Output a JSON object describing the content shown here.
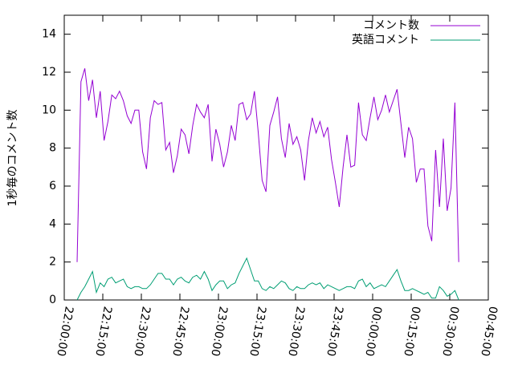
{
  "chart_data": {
    "type": "line",
    "y_label": "1秒毎のコメント数",
    "x": [
      "22:05:00",
      "22:06:30",
      "22:08:00",
      "22:09:30",
      "22:11:00",
      "22:12:30",
      "22:14:00",
      "22:15:30",
      "22:17:00",
      "22:18:30",
      "22:20:00",
      "22:21:30",
      "22:23:00",
      "22:24:30",
      "22:26:00",
      "22:27:30",
      "22:29:00",
      "22:30:30",
      "22:32:00",
      "22:33:30",
      "22:35:00",
      "22:36:30",
      "22:38:00",
      "22:39:30",
      "22:41:00",
      "22:42:30",
      "22:44:00",
      "22:45:30",
      "22:47:00",
      "22:48:30",
      "22:50:00",
      "22:51:30",
      "22:53:00",
      "22:54:30",
      "22:56:00",
      "22:57:30",
      "22:59:00",
      "23:00:30",
      "23:02:00",
      "23:03:30",
      "23:05:00",
      "23:06:30",
      "23:08:00",
      "23:09:30",
      "23:11:00",
      "23:12:30",
      "23:14:00",
      "23:15:30",
      "23:17:00",
      "23:18:30",
      "23:20:00",
      "23:21:30",
      "23:23:00",
      "23:24:30",
      "23:26:00",
      "23:27:30",
      "23:29:00",
      "23:30:30",
      "23:32:00",
      "23:33:30",
      "23:35:00",
      "23:36:30",
      "23:38:00",
      "23:39:30",
      "23:41:00",
      "23:42:30",
      "23:44:00",
      "23:45:30",
      "23:47:00",
      "23:48:30",
      "23:50:00",
      "23:51:30",
      "23:53:00",
      "23:54:30",
      "23:56:00",
      "23:57:30",
      "23:59:00",
      "00:00:30",
      "00:02:00",
      "00:03:30",
      "00:05:00",
      "00:06:30",
      "00:08:00",
      "00:09:30",
      "00:11:00",
      "00:12:30",
      "00:14:00",
      "00:15:30",
      "00:17:00",
      "00:18:30",
      "00:20:00",
      "00:21:30",
      "00:23:00",
      "00:24:30",
      "00:26:00",
      "00:27:30",
      "00:29:00",
      "00:30:30",
      "00:32:00",
      "00:33:30"
    ],
    "series": [
      {
        "name": "コメント数",
        "color": "#9400d3",
        "values": [
          2.0,
          11.5,
          12.2,
          10.5,
          11.6,
          9.6,
          11.0,
          8.4,
          9.4,
          10.8,
          10.6,
          11.0,
          10.5,
          9.7,
          9.3,
          10.0,
          10.0,
          7.8,
          6.9,
          9.6,
          10.5,
          10.3,
          10.4,
          7.9,
          8.3,
          6.7,
          7.6,
          9.0,
          8.7,
          7.7,
          9.2,
          10.3,
          9.9,
          9.6,
          10.3,
          7.3,
          9.0,
          8.2,
          7.0,
          7.8,
          9.2,
          8.4,
          10.3,
          10.4,
          9.5,
          9.8,
          11.0,
          8.8,
          6.3,
          5.7,
          9.2,
          9.9,
          10.7,
          8.5,
          7.5,
          9.3,
          8.2,
          8.6,
          7.9,
          6.3,
          8.4,
          9.6,
          8.8,
          9.4,
          8.6,
          9.1,
          7.4,
          6.2,
          4.9,
          7.0,
          8.7,
          7.0,
          7.1,
          10.4,
          8.7,
          8.4,
          9.6,
          10.7,
          9.5,
          10.0,
          10.8,
          9.9,
          10.5,
          11.1,
          9.3,
          7.5,
          9.1,
          8.5,
          6.2,
          6.9,
          6.9,
          3.9,
          3.1,
          7.9,
          4.9,
          8.5,
          4.7,
          5.9,
          10.4,
          2.0
        ]
      },
      {
        "name": "英語コメント",
        "color": "#009e73",
        "values": [
          0.0,
          0.4,
          0.7,
          1.1,
          1.5,
          0.4,
          0.9,
          0.7,
          1.1,
          1.2,
          0.9,
          1.0,
          1.1,
          0.7,
          0.6,
          0.7,
          0.7,
          0.6,
          0.6,
          0.8,
          1.1,
          1.4,
          1.4,
          1.1,
          1.1,
          0.8,
          1.1,
          1.2,
          1.0,
          0.9,
          1.2,
          1.3,
          1.1,
          1.5,
          1.1,
          0.5,
          0.8,
          1.0,
          1.0,
          0.6,
          0.8,
          0.9,
          1.4,
          1.8,
          2.2,
          1.6,
          1.0,
          1.0,
          0.6,
          0.5,
          0.7,
          0.6,
          0.8,
          1.0,
          0.9,
          0.6,
          0.5,
          0.7,
          0.6,
          0.6,
          0.8,
          0.9,
          0.8,
          0.9,
          0.6,
          0.8,
          0.7,
          0.6,
          0.5,
          0.6,
          0.7,
          0.7,
          0.6,
          1.0,
          1.1,
          0.7,
          0.9,
          0.6,
          0.7,
          0.8,
          0.7,
          1.0,
          1.3,
          1.6,
          1.0,
          0.5,
          0.5,
          0.6,
          0.5,
          0.4,
          0.3,
          0.4,
          0.1,
          0.1,
          0.7,
          0.5,
          0.2,
          0.3,
          0.5,
          0.0
        ]
      }
    ],
    "xlim": [
      "22:00:00",
      "00:45:00"
    ],
    "xticks": [
      "22:00:00",
      "22:15:00",
      "22:30:00",
      "22:45:00",
      "23:00:00",
      "23:15:00",
      "23:30:00",
      "23:45:00",
      "00:00:00",
      "00:15:00",
      "00:30:00",
      "00:45:00"
    ],
    "ylim": [
      0,
      15
    ],
    "yticks": [
      0,
      2,
      4,
      6,
      8,
      10,
      12,
      14
    ],
    "legend": "top-right",
    "grid": false
  }
}
